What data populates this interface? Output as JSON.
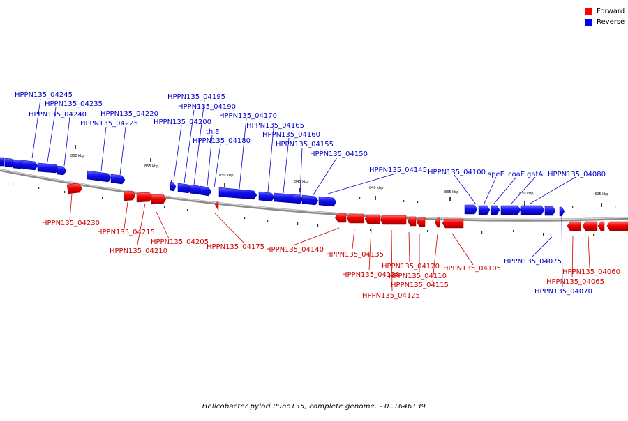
{
  "legend": {
    "forward_label": "Forward",
    "reverse_label": "Reverse",
    "forward_color": "#ff0000",
    "reverse_color": "#0000ff"
  },
  "caption": "Helicobacter pylori Puno135, complete genome. - 0..1646139",
  "scale_unit": "kbp",
  "ticks": [
    {
      "label": "860 kbp"
    },
    {
      "label": "855 kbp"
    },
    {
      "label": "850 kbp"
    },
    {
      "label": "845 kbp"
    },
    {
      "label": "840 kbp"
    },
    {
      "label": "835 kbp"
    },
    {
      "label": "830 kbp"
    },
    {
      "label": "825 kbp"
    }
  ],
  "genes_reverse": [
    {
      "name": "HPPN135_04245"
    },
    {
      "name": "HPPN135_04235"
    },
    {
      "name": "HPPN135_04240"
    },
    {
      "name": "HPPN135_04220"
    },
    {
      "name": "HPPN135_04225"
    },
    {
      "name": "HPPN135_04195"
    },
    {
      "name": "HPPN135_04190"
    },
    {
      "name": "HPPN135_04200"
    },
    {
      "name": "thiE"
    },
    {
      "name": "HPPN135_04180"
    },
    {
      "name": "HPPN135_04170"
    },
    {
      "name": "HPPN135_04165"
    },
    {
      "name": "HPPN135_04160"
    },
    {
      "name": "HPPN135_04155"
    },
    {
      "name": "HPPN135_04150"
    },
    {
      "name": "HPPN135_04145"
    },
    {
      "name": "HPPN135_04100"
    },
    {
      "name": "speE"
    },
    {
      "name": "coaE"
    },
    {
      "name": "gatA"
    },
    {
      "name": "HPPN135_04080"
    },
    {
      "name": "HPPN135_04075"
    },
    {
      "name": "HPPN135_04070"
    }
  ],
  "genes_forward": [
    {
      "name": "HPPN135_04230"
    },
    {
      "name": "HPPN135_04215"
    },
    {
      "name": "HPPN135_04205"
    },
    {
      "name": "HPPN135_04210"
    },
    {
      "name": "HPPN135_04175"
    },
    {
      "name": "HPPN135_04140"
    },
    {
      "name": "HPPN135_04135"
    },
    {
      "name": "HPPN135_04130"
    },
    {
      "name": "HPPN135_04120"
    },
    {
      "name": "HPPN135_04110"
    },
    {
      "name": "HPPN135_04115"
    },
    {
      "name": "HPPN135_04125"
    },
    {
      "name": "HPPN135_04105"
    },
    {
      "name": "HPPN135_04060"
    },
    {
      "name": "HPPN135_04065"
    }
  ]
}
